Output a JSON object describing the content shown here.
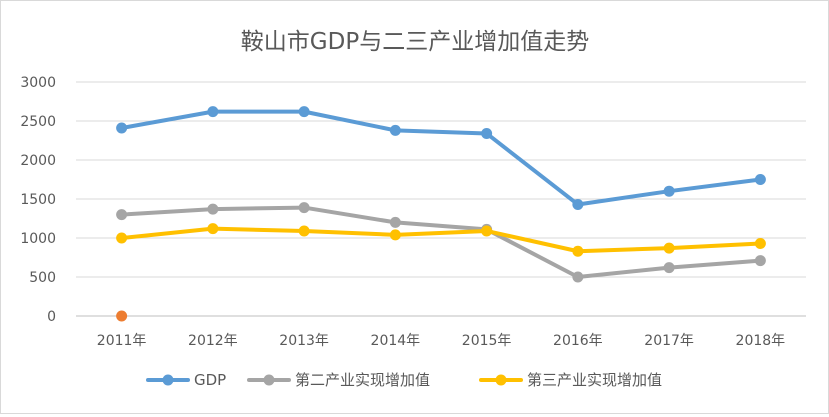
{
  "chart_data": {
    "type": "line",
    "title": "鞍山市GDP与二三产业增加值走势",
    "categories": [
      "2011年",
      "2012年",
      "2013年",
      "2014年",
      "2015年",
      "2016年",
      "2017年",
      "2018年"
    ],
    "ylim": [
      0,
      3000
    ],
    "yticks": [
      0,
      500,
      1000,
      1500,
      2000,
      2500,
      3000
    ],
    "grid": true,
    "legend_position": "bottom",
    "series": [
      {
        "name": "GDP",
        "color": "#5b9bd5",
        "values": [
          2410,
          2620,
          2620,
          2380,
          2340,
          1430,
          1600,
          1750
        ]
      },
      {
        "name": "第二产业实现增加值",
        "color": "#a5a5a5",
        "values": [
          1300,
          1370,
          1390,
          1200,
          1110,
          500,
          620,
          710
        ]
      },
      {
        "name": "第三产业实现增加值",
        "color": "#ffc000",
        "values": [
          1000,
          1120,
          1090,
          1040,
          1090,
          830,
          870,
          930
        ]
      }
    ],
    "extra_point": {
      "color": "#ed7d31",
      "category_index": 0,
      "value": 0
    }
  }
}
